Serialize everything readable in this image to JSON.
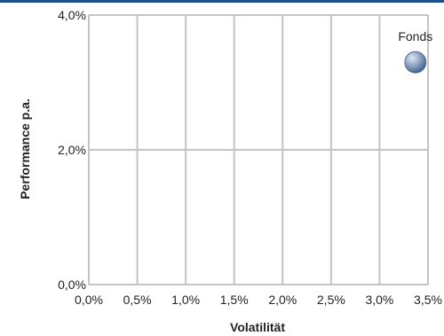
{
  "chart_data": {
    "type": "scatter",
    "title": "",
    "xlabel": "Volatilität",
    "ylabel": "Performance p.a.",
    "xlim": [
      0,
      3.5
    ],
    "ylim": [
      0,
      4
    ],
    "x_ticks": [
      0,
      0.5,
      1,
      1.5,
      2,
      2.5,
      3,
      3.5
    ],
    "y_ticks": [
      0,
      2,
      4
    ],
    "x_tick_labels": [
      "0,0%",
      "0,5%",
      "1,0%",
      "1,5%",
      "2,0%",
      "2,5%",
      "3,0%",
      "3,5%"
    ],
    "y_tick_labels": [
      "0,0%",
      "2,0%",
      "4,0%"
    ],
    "grid": true,
    "series": [
      {
        "name": "Fonds",
        "points": [
          {
            "x": 3.37,
            "y": 3.3
          }
        ]
      }
    ]
  },
  "colors": {
    "top_rule": "#1f4e8c",
    "grid": "#c4c4c4",
    "marker": "#3f5f8e",
    "marker_highlight": "#dfe8f4"
  }
}
